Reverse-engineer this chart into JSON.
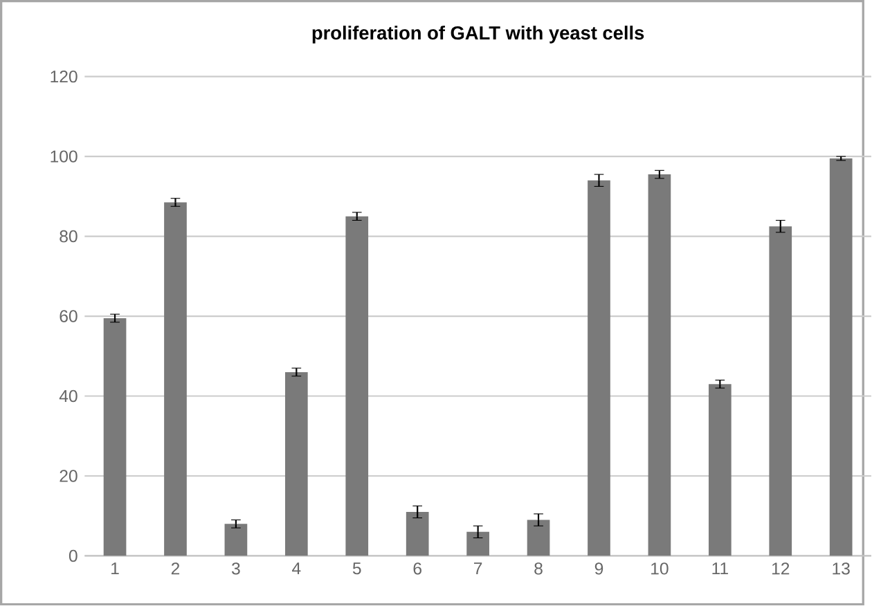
{
  "chart_data": {
    "type": "bar",
    "title": "proliferation of GALT with yeast cells",
    "categories": [
      "1",
      "2",
      "3",
      "4",
      "5",
      "6",
      "7",
      "8",
      "9",
      "10",
      "11",
      "12",
      "13"
    ],
    "values": [
      59.5,
      88.5,
      8,
      46,
      85,
      11,
      6,
      9,
      94,
      95.5,
      43,
      82.5,
      99.5
    ],
    "errors": [
      1,
      1,
      1,
      1,
      1,
      1.5,
      1.5,
      1.5,
      1.5,
      1,
      1,
      1.5,
      0.5
    ],
    "color": "#7a7a7a",
    "ylim": [
      0,
      120
    ],
    "yticks": [
      0,
      20,
      40,
      60,
      80,
      100,
      120
    ],
    "grid": "y"
  }
}
